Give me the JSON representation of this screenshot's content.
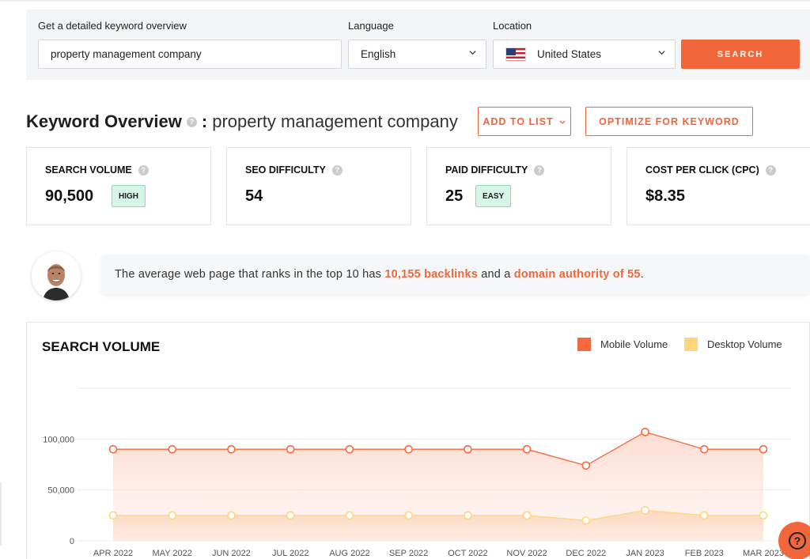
{
  "search_panel": {
    "keyword_label": "Get a detailed keyword overview",
    "keyword_value": "property management company",
    "language_label": "Language",
    "language_value": "English",
    "location_label": "Location",
    "location_value": "United States",
    "location_icon": "us-flag-icon",
    "search_button": "SEARCH"
  },
  "overview": {
    "title": "Keyword Overview",
    "colon": ":",
    "keyword": "property management company",
    "add_to_list": "ADD TO LIST",
    "optimize": "OPTIMIZE FOR KEYWORD",
    "help_glyph": "?"
  },
  "metrics": [
    {
      "title": "SEARCH VOLUME",
      "value": "90,500",
      "badge": "HIGH"
    },
    {
      "title": "SEO DIFFICULTY",
      "value": "54",
      "badge": ""
    },
    {
      "title": "PAID DIFFICULTY",
      "value": "25",
      "badge": "EASY"
    },
    {
      "title": "COST PER CLICK (CPC)",
      "value": "$8.35",
      "badge": ""
    }
  ],
  "insight": {
    "text_before": "The average web page that ranks in the top 10 has ",
    "backlinks": "10,155 backlinks",
    "text_middle": " and a ",
    "authority": "domain authority of 55",
    "text_after": "."
  },
  "colors": {
    "accent": "#f1663a",
    "mobile": "#f26a3f",
    "desktop": "#ffd77a",
    "badge_bg": "#d6f5e6"
  },
  "chart_data": {
    "type": "line",
    "title": "SEARCH VOLUME",
    "categories": [
      "APR 2022",
      "MAY 2022",
      "JUN 2022",
      "JUL 2022",
      "AUG 2022",
      "SEP 2022",
      "OCT 2022",
      "NOV 2022",
      "DEC 2022",
      "JAN 2023",
      "FEB 2023",
      "MAR 2023"
    ],
    "series": [
      {
        "name": "Mobile Volume",
        "values": [
          90000,
          90000,
          90000,
          90000,
          90000,
          90000,
          90000,
          90000,
          74000,
          107000,
          90000,
          90000
        ]
      },
      {
        "name": "Desktop Volume",
        "values": [
          25000,
          25000,
          25000,
          25000,
          25000,
          25000,
          25000,
          25000,
          20000,
          30000,
          25000,
          25000
        ]
      }
    ],
    "y_ticks": [
      0,
      50000,
      100000
    ],
    "y_tick_labels": [
      "0",
      "50,000",
      "100,000"
    ],
    "ylim": [
      0,
      150000
    ],
    "grid": true,
    "legend_position": "top-right"
  },
  "help_fab": "?"
}
